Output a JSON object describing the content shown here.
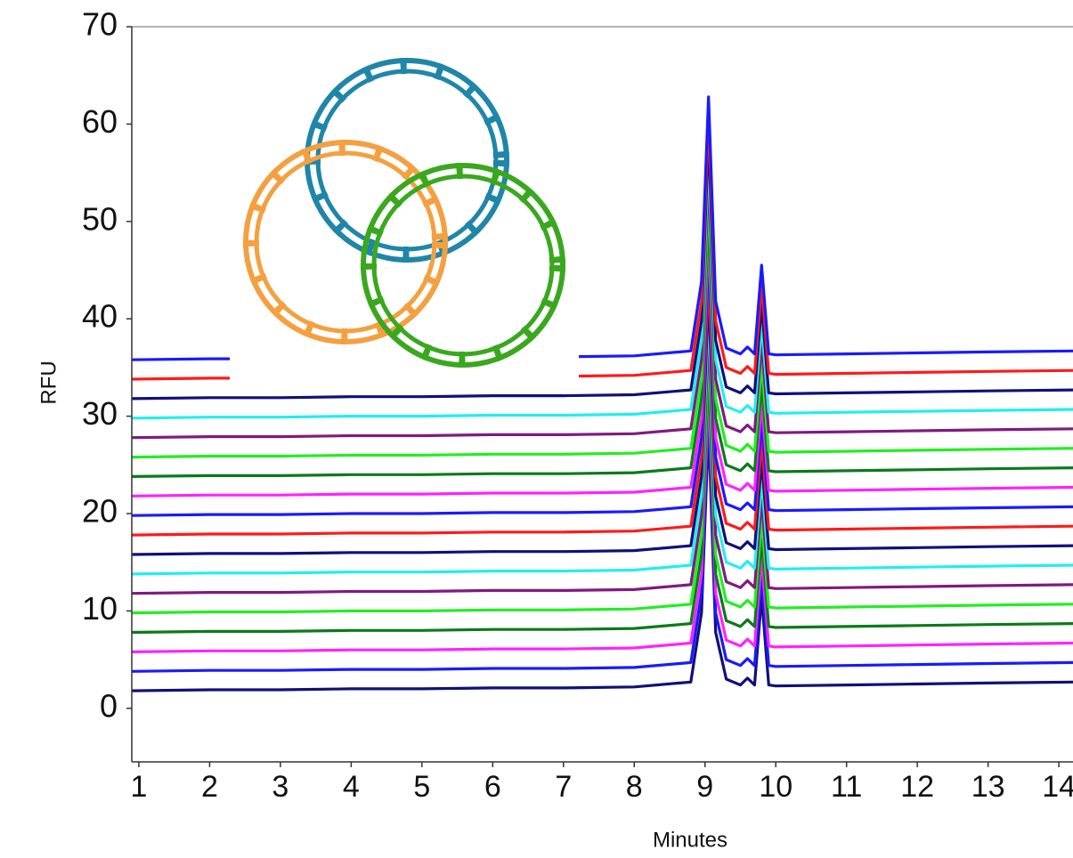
{
  "chart_data": {
    "type": "line",
    "x_label": "Minutes",
    "y_label": "RFU",
    "xlim": [
      0.9,
      14.2
    ],
    "ylim": [
      -5.5,
      70
    ],
    "xticks": [
      1,
      2,
      3,
      4,
      5,
      6,
      7,
      8,
      9,
      10,
      11,
      12,
      13,
      14
    ],
    "yticks": [
      0,
      10,
      20,
      30,
      40,
      50,
      60,
      70
    ],
    "x": [
      0.9,
      2,
      3,
      4,
      5,
      6,
      7,
      8,
      8.8,
      8.95,
      9.05,
      9.15,
      9.3,
      9.5,
      9.6,
      9.7,
      9.8,
      9.9,
      10,
      11,
      12,
      13,
      14.2
    ],
    "series": [
      {
        "color": "#10107a",
        "values": [
          1.8,
          1.9,
          1.9,
          2.0,
          2.0,
          2.1,
          2.1,
          2.2,
          2.7,
          9.8,
          28.8,
          7.8,
          3.0,
          2.4,
          3.1,
          2.4,
          11.5,
          2.4,
          2.3,
          2.4,
          2.5,
          2.6,
          2.7
        ]
      },
      {
        "color": "#1a1aff",
        "values": [
          3.8,
          3.9,
          3.9,
          4.0,
          4.0,
          4.1,
          4.1,
          4.2,
          4.7,
          11.8,
          30.8,
          9.8,
          5.0,
          4.4,
          5.1,
          4.4,
          13.5,
          4.4,
          4.3,
          4.4,
          4.5,
          4.6,
          4.7
        ]
      },
      {
        "color": "#ff22ff",
        "values": [
          5.8,
          5.9,
          5.9,
          6.0,
          6.0,
          6.1,
          6.1,
          6.2,
          6.7,
          13.8,
          32.8,
          11.8,
          7.0,
          6.4,
          7.1,
          6.4,
          15.5,
          6.4,
          6.3,
          6.4,
          6.5,
          6.6,
          6.7
        ]
      },
      {
        "color": "#0b7a1a",
        "values": [
          7.8,
          7.9,
          7.9,
          8.0,
          8.0,
          8.1,
          8.1,
          8.2,
          8.7,
          15.8,
          34.8,
          13.8,
          9.0,
          8.4,
          9.1,
          8.4,
          17.5,
          8.4,
          8.3,
          8.4,
          8.5,
          8.6,
          8.7
        ]
      },
      {
        "color": "#22ee22",
        "values": [
          9.8,
          9.9,
          9.9,
          10.0,
          10.0,
          10.1,
          10.1,
          10.2,
          10.7,
          17.8,
          36.8,
          15.8,
          11.0,
          10.4,
          11.1,
          10.4,
          19.5,
          10.4,
          10.3,
          10.4,
          10.5,
          10.6,
          10.7
        ]
      },
      {
        "color": "#801a80",
        "values": [
          11.8,
          11.9,
          11.9,
          12.0,
          12.0,
          12.1,
          12.1,
          12.2,
          12.7,
          19.8,
          38.8,
          17.8,
          13.0,
          12.4,
          13.1,
          12.4,
          21.5,
          12.4,
          12.3,
          12.4,
          12.5,
          12.6,
          12.7
        ]
      },
      {
        "color": "#22eeee",
        "values": [
          13.8,
          13.9,
          13.9,
          14.0,
          14.0,
          14.1,
          14.1,
          14.2,
          14.7,
          21.8,
          40.8,
          19.8,
          15.0,
          14.4,
          15.1,
          14.4,
          23.5,
          14.4,
          14.3,
          14.4,
          14.5,
          14.6,
          14.7
        ]
      },
      {
        "color": "#10107a",
        "values": [
          15.8,
          15.9,
          15.9,
          16.0,
          16.0,
          16.1,
          16.1,
          16.2,
          16.7,
          23.8,
          42.8,
          21.8,
          17.0,
          16.4,
          17.1,
          16.4,
          25.5,
          16.4,
          16.3,
          16.4,
          16.5,
          16.6,
          16.7
        ]
      },
      {
        "color": "#ff1a1a",
        "values": [
          17.8,
          17.9,
          17.9,
          18.0,
          18.0,
          18.1,
          18.1,
          18.2,
          18.7,
          25.8,
          44.8,
          23.8,
          19.0,
          18.4,
          19.1,
          18.4,
          27.5,
          18.4,
          18.3,
          18.4,
          18.5,
          18.6,
          18.7
        ]
      },
      {
        "color": "#1a1aff",
        "values": [
          19.8,
          19.9,
          19.9,
          20.0,
          20.0,
          20.1,
          20.1,
          20.2,
          20.7,
          27.8,
          46.8,
          25.8,
          21.0,
          20.4,
          21.1,
          20.4,
          29.5,
          20.4,
          20.3,
          20.4,
          20.5,
          20.6,
          20.7
        ]
      },
      {
        "color": "#ff22ff",
        "values": [
          21.8,
          21.9,
          21.9,
          22.0,
          22.0,
          22.1,
          22.1,
          22.2,
          22.7,
          29.8,
          48.8,
          27.8,
          23.0,
          22.4,
          23.1,
          22.4,
          31.5,
          22.4,
          22.3,
          22.4,
          22.5,
          22.6,
          22.7
        ]
      },
      {
        "color": "#0b7a1a",
        "values": [
          23.8,
          23.9,
          23.9,
          24.0,
          24.0,
          24.1,
          24.1,
          24.2,
          24.7,
          31.8,
          50.8,
          29.8,
          25.0,
          24.4,
          25.1,
          24.4,
          33.5,
          24.4,
          24.3,
          24.4,
          24.5,
          24.6,
          24.7
        ]
      },
      {
        "color": "#22ee22",
        "values": [
          25.8,
          25.9,
          25.9,
          26.0,
          26.0,
          26.1,
          26.1,
          26.2,
          26.7,
          33.8,
          52.8,
          31.8,
          27.0,
          26.4,
          27.1,
          26.4,
          35.5,
          26.4,
          26.3,
          26.4,
          26.5,
          26.6,
          26.7
        ]
      },
      {
        "color": "#801a80",
        "values": [
          27.8,
          27.9,
          27.9,
          28.0,
          28.0,
          28.1,
          28.1,
          28.2,
          28.7,
          35.8,
          54.8,
          33.8,
          29.0,
          28.4,
          29.1,
          28.4,
          37.5,
          28.4,
          28.3,
          28.4,
          28.5,
          28.6,
          28.7
        ]
      },
      {
        "color": "#22eeee",
        "values": [
          29.8,
          29.9,
          29.9,
          30.0,
          30.0,
          30.1,
          30.1,
          30.2,
          30.7,
          37.8,
          56.8,
          35.8,
          31.0,
          30.4,
          31.1,
          30.4,
          39.5,
          30.4,
          30.3,
          30.4,
          30.5,
          30.6,
          30.7
        ]
      },
      {
        "color": "#10107a",
        "values": [
          31.8,
          31.9,
          31.9,
          32.0,
          32.0,
          32.1,
          32.1,
          32.2,
          32.7,
          39.8,
          58.8,
          37.8,
          33.0,
          32.4,
          33.1,
          32.4,
          41.5,
          32.4,
          32.3,
          32.4,
          32.5,
          32.6,
          32.7
        ]
      },
      {
        "color": "#ff1a1a",
        "values": [
          33.8,
          33.9,
          33.9,
          34.0,
          34.0,
          34.1,
          34.1,
          34.2,
          34.7,
          41.8,
          60.8,
          39.8,
          35.0,
          34.4,
          35.1,
          34.4,
          43.5,
          34.4,
          34.3,
          34.4,
          34.5,
          34.6,
          34.7
        ]
      },
      {
        "color": "#1a1aff",
        "values": [
          35.8,
          35.9,
          35.9,
          36.0,
          36.0,
          36.1,
          36.1,
          36.2,
          36.7,
          43.8,
          62.8,
          41.8,
          37.0,
          36.4,
          37.1,
          36.4,
          45.5,
          36.4,
          36.3,
          36.4,
          36.5,
          36.6,
          36.7
        ]
      }
    ]
  }
}
